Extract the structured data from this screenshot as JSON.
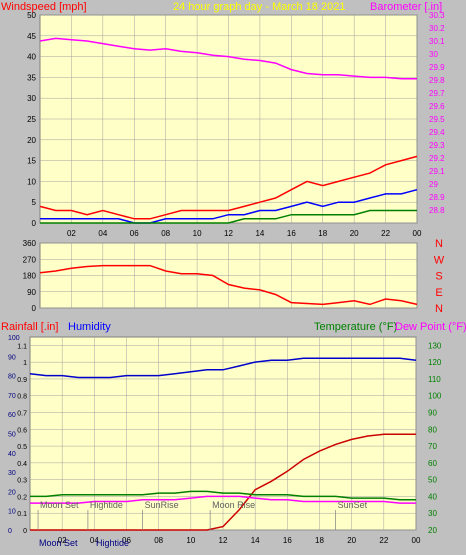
{
  "chart_data": [
    {
      "type": "line",
      "title": "24 hour graph day - March 18 2021",
      "ylabel_left": "Windspeed [mph]",
      "ylabel_right": "Barometer [.in]",
      "x_ticks": [
        "02",
        "04",
        "06",
        "08",
        "10",
        "12",
        "14",
        "16",
        "18",
        "20",
        "22",
        "00"
      ],
      "ylim_left": [
        0,
        50
      ],
      "ylim_right": [
        28.7,
        30.3
      ],
      "y_ticks_left": [
        "0",
        "5",
        "10",
        "15",
        "20",
        "25",
        "30",
        "35",
        "40",
        "45",
        "50"
      ],
      "y_ticks_right": [
        "28.8",
        "28.9",
        "29",
        "29.1",
        "29.2",
        "29.3",
        "29.4",
        "29.5",
        "29.6",
        "29.7",
        "29.8",
        "29.9",
        "30",
        "30.1",
        "30.2",
        "30.3"
      ],
      "x_hours": [
        0,
        1,
        2,
        3,
        4,
        5,
        6,
        7,
        8,
        9,
        10,
        11,
        12,
        13,
        14,
        15,
        16,
        17,
        18,
        19,
        20,
        21,
        22,
        23,
        24
      ],
      "series": [
        {
          "name": "Windspeed",
          "color": "#ff0000",
          "axis": "left",
          "values": [
            4,
            3,
            3,
            2,
            3,
            2,
            1,
            1,
            2,
            3,
            3,
            3,
            3,
            4,
            5,
            6,
            8,
            10,
            9,
            10,
            11,
            12,
            14,
            15,
            16
          ]
        },
        {
          "name": "Wind Gust",
          "color": "#0000ff",
          "axis": "left",
          "values": [
            1,
            1,
            1,
            1,
            1,
            1,
            0,
            0,
            1,
            1,
            1,
            1,
            2,
            2,
            3,
            3,
            4,
            5,
            4,
            5,
            5,
            6,
            7,
            7,
            8
          ]
        },
        {
          "name": "Wind Avg",
          "color": "#008000",
          "axis": "left",
          "values": [
            0,
            0,
            0,
            0,
            0,
            0,
            0,
            0,
            0,
            0,
            0,
            0,
            0,
            1,
            1,
            1,
            2,
            2,
            2,
            2,
            2,
            3,
            3,
            3,
            3
          ]
        },
        {
          "name": "Barometer",
          "color": "#ff00ff",
          "axis": "right",
          "values": [
            30.1,
            30.12,
            30.11,
            30.1,
            30.08,
            30.06,
            30.04,
            30.03,
            30.04,
            30.02,
            30.01,
            29.99,
            29.98,
            29.96,
            29.95,
            29.93,
            29.88,
            29.85,
            29.84,
            29.84,
            29.83,
            29.82,
            29.82,
            29.81,
            29.81
          ]
        }
      ]
    },
    {
      "type": "line",
      "y_ticks": [
        "0",
        "90",
        "180",
        "270",
        "360"
      ],
      "ylim": [
        0,
        360
      ],
      "right_labels": [
        "N",
        "W",
        "S",
        "E",
        "N"
      ],
      "x_hours": [
        0,
        1,
        2,
        3,
        4,
        5,
        6,
        7,
        8,
        9,
        10,
        11,
        12,
        13,
        14,
        15,
        16,
        17,
        18,
        19,
        20,
        21,
        22,
        23,
        24
      ],
      "series": [
        {
          "name": "Wind Direction",
          "color": "#ff0000",
          "values": [
            195,
            205,
            220,
            230,
            235,
            235,
            235,
            235,
            205,
            190,
            190,
            180,
            130,
            110,
            100,
            75,
            30,
            25,
            20,
            30,
            40,
            20,
            50,
            40,
            20
          ]
        }
      ]
    },
    {
      "type": "line",
      "ylabel_left_1": "Rainfall [.in]",
      "ylabel_left_2": "Humidity",
      "ylabel_right_1": "Temperature (°F)",
      "ylabel_right_2": "Dew Point (°F)",
      "y_ticks_humidity": [
        "0",
        "10",
        "20",
        "30",
        "40",
        "50",
        "60",
        "70",
        "80",
        "90",
        "100"
      ],
      "y_ticks_rain": [
        "0",
        "0.1",
        "0.2",
        "0.3",
        "0.4",
        "0.5",
        "0.6",
        "0.7",
        "0.8",
        "0.9",
        "1",
        "1.1"
      ],
      "y_ticks_temp": [
        "20",
        "30",
        "40",
        "50",
        "60",
        "70",
        "80",
        "90",
        "100",
        "110",
        "120",
        "130"
      ],
      "ylim_rain": [
        0,
        1.15
      ],
      "ylim_humidity": [
        0,
        100
      ],
      "ylim_temp": [
        20,
        135
      ],
      "x_hours": [
        0,
        1,
        2,
        3,
        4,
        5,
        6,
        7,
        8,
        9,
        10,
        11,
        12,
        13,
        14,
        15,
        16,
        17,
        18,
        19,
        20,
        21,
        22,
        23,
        24
      ],
      "series": [
        {
          "name": "Humidity",
          "color": "#0000cc",
          "axis": "humidity",
          "values": [
            81,
            80,
            80,
            79,
            79,
            79,
            80,
            80,
            80,
            81,
            82,
            83,
            83,
            85,
            87,
            88,
            88,
            89,
            89,
            89,
            89,
            89,
            89,
            89,
            88
          ]
        },
        {
          "name": "Rainfall",
          "color": "#cc0000",
          "axis": "rain",
          "values": [
            0,
            0,
            0,
            0,
            0,
            0,
            0,
            0,
            0,
            0,
            0,
            0,
            0.02,
            0.12,
            0.24,
            0.29,
            0.35,
            0.42,
            0.47,
            0.51,
            0.54,
            0.56,
            0.57,
            0.57,
            0.57
          ]
        },
        {
          "name": "Temperature",
          "color": "#008000",
          "axis": "temp",
          "values": [
            40,
            40,
            41,
            41,
            41,
            41,
            41,
            41,
            42,
            42,
            43,
            43,
            42,
            42,
            41,
            41,
            41,
            40,
            40,
            40,
            39,
            39,
            39,
            38,
            38
          ]
        },
        {
          "name": "Dew Point",
          "color": "#ff00ff",
          "axis": "temp",
          "values": [
            36,
            36,
            36,
            36,
            37,
            37,
            37,
            38,
            38,
            38,
            39,
            40,
            40,
            40,
            39,
            38,
            38,
            37,
            37,
            37,
            37,
            37,
            37,
            36,
            36
          ]
        }
      ],
      "annotations": [
        {
          "label": "Moon Set",
          "hour": 0.5
        },
        {
          "label": "Hightide",
          "hour": 3.6
        },
        {
          "label": "SunRise",
          "hour": 7.0
        },
        {
          "label": "Moon Rise",
          "hour": 11.2
        },
        {
          "label": "SunSet",
          "hour": 19.0
        }
      ],
      "x_ticks": [
        "02",
        "04",
        "06",
        "08",
        "10",
        "12",
        "14",
        "16",
        "18",
        "20",
        "22",
        "00"
      ],
      "bottom_labels": [
        "Moon Set",
        "Hightide"
      ]
    }
  ],
  "colors": {
    "background": "#c0c0c0",
    "plot": "#ffffc8",
    "grid": "#a0a0a0",
    "title": "#ffff00",
    "barometer": "#ff00ff",
    "wind": "#ff0000",
    "humidity_label": "#0000ff",
    "temperature_label": "#008000"
  }
}
